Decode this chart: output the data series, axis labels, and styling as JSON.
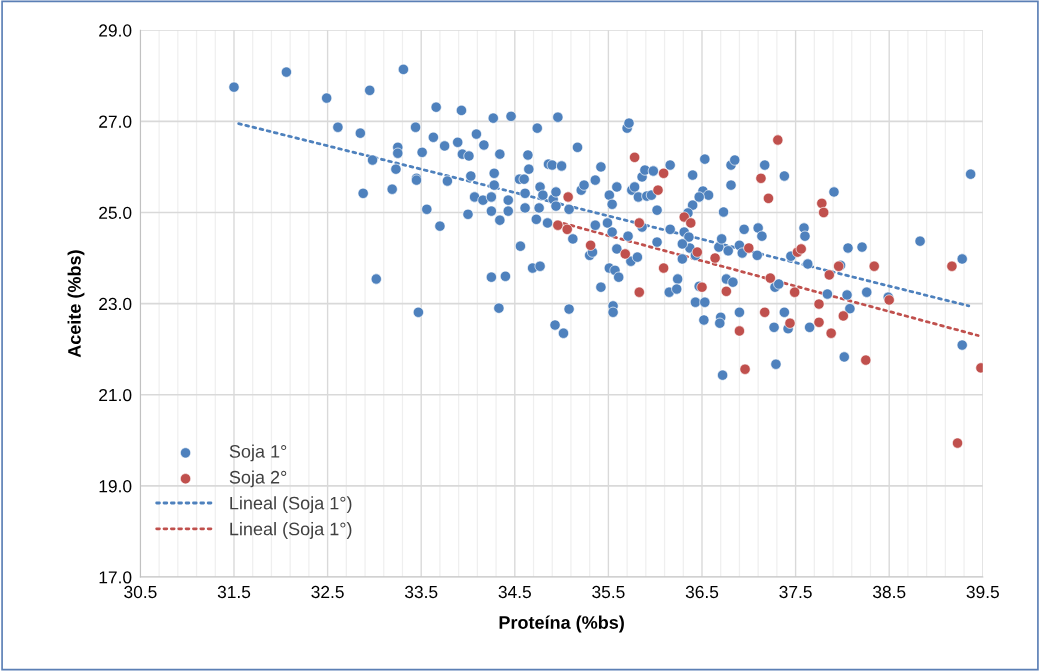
{
  "chart_data": {
    "type": "scatter",
    "xlabel": "Proteína (%bs)",
    "ylabel": "Aceite (%bs)",
    "xlim": [
      30.5,
      39.5
    ],
    "ylim": [
      17.0,
      29.0
    ],
    "xticks": [
      {
        "value": 30.5,
        "label": "30.5"
      },
      {
        "value": 31.5,
        "label": "31.5"
      },
      {
        "value": 32.5,
        "label": "32.5"
      },
      {
        "value": 33.5,
        "label": "33.5"
      },
      {
        "value": 34.5,
        "label": "34.5"
      },
      {
        "value": 35.5,
        "label": "35.5"
      },
      {
        "value": 36.5,
        "label": "36.5"
      },
      {
        "value": 37.5,
        "label": "37.5"
      },
      {
        "value": 38.5,
        "label": "38.5"
      },
      {
        "value": 39.5,
        "label": "39.5"
      }
    ],
    "yticks": [
      {
        "value": 17,
        "label": "17.0"
      },
      {
        "value": 19,
        "label": "19.0"
      },
      {
        "value": 21,
        "label": "21.0"
      },
      {
        "value": 23,
        "label": "23.0"
      },
      {
        "value": 25,
        "label": "25.0"
      },
      {
        "value": 27,
        "label": "27.0"
      },
      {
        "value": 29,
        "label": "29.0"
      }
    ],
    "grid": true,
    "legend": "bottom left",
    "marker": "circle",
    "series": [
      {
        "name": "Soja 1°",
        "color": "#4e81bd",
        "x": [
          31.5,
          32.06,
          32.49,
          32.95,
          33.31,
          32.61,
          32.85,
          33.25,
          33.25,
          32.98,
          33.23,
          33.19,
          32.88,
          33.44,
          33.45,
          33.45,
          33.51,
          33.56,
          33.66,
          33.63,
          33.75,
          33.78,
          33.7,
          33.93,
          33.89,
          33.94,
          34.01,
          34.09,
          34.17,
          34.03,
          34.0,
          34.07,
          34.16,
          34.25,
          34.28,
          34.28,
          34.25,
          34.43,
          34.34,
          34.43,
          34.27,
          34.46,
          34.34,
          34.64,
          34.65,
          34.74,
          34.96,
          34.86,
          34.9,
          35.0,
          34.55,
          34.6,
          34.77,
          34.61,
          34.8,
          34.91,
          34.94,
          34.76,
          34.61,
          34.73,
          34.85,
          34.94,
          35.08,
          35.12,
          34.56,
          34.69,
          34.77,
          34.25,
          34.4,
          34.33,
          33.02,
          33.47,
          35.08,
          34.93,
          35.02,
          35.17,
          35.21,
          35.24,
          35.3,
          35.33,
          35.36,
          35.36,
          35.42,
          35.42,
          35.49,
          35.51,
          35.54,
          35.59,
          35.54,
          35.59,
          35.51,
          35.57,
          35.61,
          35.55,
          35.55,
          35.71,
          35.74,
          35.81,
          35.86,
          35.7,
          35.72,
          35.75,
          35.78,
          35.82,
          35.86,
          35.89,
          35.98,
          35.91,
          35.96,
          36.02,
          36.02,
          36.16,
          36.16,
          36.24,
          36.15,
          36.23,
          36.29,
          36.31,
          36.36,
          36.37,
          36.43,
          36.4,
          36.4,
          36.35,
          36.51,
          36.57,
          36.47,
          36.53,
          36.43,
          36.53,
          36.47,
          36.52,
          36.7,
          36.69,
          36.73,
          36.68,
          36.78,
          36.71,
          36.76,
          36.83,
          36.81,
          36.85,
          36.81,
          36.9,
          36.93,
          36.9,
          36.95,
          37.09,
          37.1,
          37.14,
          37.17,
          37.28,
          37.32,
          37.27,
          37.38,
          37.38,
          37.42,
          37.45,
          37.59,
          37.6,
          37.63,
          37.65,
          37.84,
          37.91,
          37.98,
          38.05,
          38.08,
          38.06,
          38.21,
          38.26,
          38.49,
          38.83,
          39.28,
          36.72,
          37.29,
          38.02,
          39.28,
          39.37,
          36.29
        ],
        "values": [
          27.75,
          28.08,
          27.51,
          27.68,
          28.14,
          26.87,
          26.74,
          26.43,
          26.3,
          26.15,
          25.95,
          25.51,
          25.42,
          26.87,
          25.75,
          25.71,
          26.32,
          25.07,
          27.31,
          26.65,
          26.46,
          25.69,
          24.7,
          27.24,
          26.54,
          26.28,
          26.24,
          26.72,
          26.48,
          25.8,
          24.96,
          25.34,
          25.27,
          25.34,
          25.86,
          25.6,
          25.03,
          25.03,
          24.83,
          25.27,
          27.07,
          27.11,
          26.28,
          26.26,
          25.95,
          26.85,
          27.09,
          26.06,
          26.04,
          26.02,
          25.73,
          25.73,
          25.56,
          25.42,
          25.38,
          25.29,
          25.45,
          25.1,
          25.1,
          24.85,
          24.77,
          25.14,
          25.07,
          24.42,
          24.26,
          23.78,
          23.82,
          23.58,
          23.6,
          22.9,
          23.54,
          22.81,
          22.88,
          22.53,
          22.35,
          26.43,
          25.49,
          25.6,
          24.06,
          24.13,
          24.72,
          25.71,
          26.0,
          23.36,
          24.77,
          25.38,
          25.18,
          25.56,
          24.57,
          24.2,
          23.78,
          23.73,
          23.58,
          22.95,
          22.81,
          24.48,
          23.93,
          24.02,
          24.68,
          26.85,
          26.96,
          25.49,
          25.56,
          25.34,
          25.78,
          25.93,
          25.91,
          25.36,
          25.38,
          25.05,
          24.35,
          26.04,
          24.63,
          23.54,
          23.25,
          23.32,
          23.98,
          24.57,
          24.46,
          24.22,
          24.06,
          25.82,
          25.16,
          24.99,
          25.47,
          25.38,
          25.34,
          26.17,
          23.03,
          23.03,
          23.38,
          22.64,
          22.7,
          22.57,
          25.01,
          24.24,
          24.16,
          24.42,
          23.54,
          23.47,
          26.04,
          26.15,
          25.6,
          24.28,
          24.11,
          22.81,
          24.63,
          24.06,
          24.66,
          24.48,
          26.04,
          23.36,
          23.43,
          22.48,
          25.8,
          22.81,
          22.45,
          24.04,
          24.66,
          24.48,
          23.87,
          22.48,
          23.21,
          25.45,
          23.84,
          23.19,
          22.89,
          24.22,
          24.24,
          23.25,
          23.14,
          24.37,
          23.98,
          21.43,
          21.67,
          21.83,
          22.09,
          25.84,
          24.31
        ]
      },
      {
        "name": "Soja 2°",
        "color": "#c0504d",
        "x": [
          34.96,
          35.06,
          35.07,
          35.31,
          35.68,
          35.83,
          35.83,
          35.78,
          36.09,
          36.03,
          36.09,
          36.31,
          36.38,
          36.45,
          36.64,
          36.5,
          36.76,
          36.9,
          37.0,
          37.13,
          37.21,
          37.31,
          37.23,
          37.49,
          37.44,
          37.17,
          37.52,
          37.56,
          37.78,
          37.8,
          37.96,
          37.86,
          37.75,
          37.75,
          37.88,
          38.01,
          38.34,
          38.5,
          39.17,
          38.25,
          36.96,
          39.48,
          39.23
        ],
        "values": [
          24.72,
          24.63,
          25.34,
          24.28,
          24.09,
          23.25,
          24.77,
          26.21,
          25.86,
          25.49,
          23.78,
          24.9,
          24.77,
          24.13,
          24.0,
          23.36,
          23.27,
          22.4,
          24.22,
          25.75,
          25.31,
          26.59,
          23.56,
          23.25,
          22.57,
          22.81,
          24.13,
          24.2,
          25.2,
          25.0,
          23.82,
          23.63,
          22.99,
          22.59,
          22.35,
          22.73,
          23.82,
          23.08,
          23.82,
          21.76,
          21.56,
          21.59,
          19.94
        ]
      },
      {
        "name": "Lineal (Soja 1°)",
        "color": "#4e81bd",
        "type": "line",
        "line_style": "dotted",
        "marker": "none",
        "x": [
          31.55,
          39.35
        ],
        "values": [
          26.95,
          22.95
        ]
      },
      {
        "name": "Lineal (Soja 1°)",
        "color": "#c0504d",
        "type": "line",
        "line_style": "dotted",
        "marker": "none",
        "x": [
          34.95,
          39.45
        ],
        "values": [
          24.8,
          22.3
        ]
      }
    ]
  }
}
